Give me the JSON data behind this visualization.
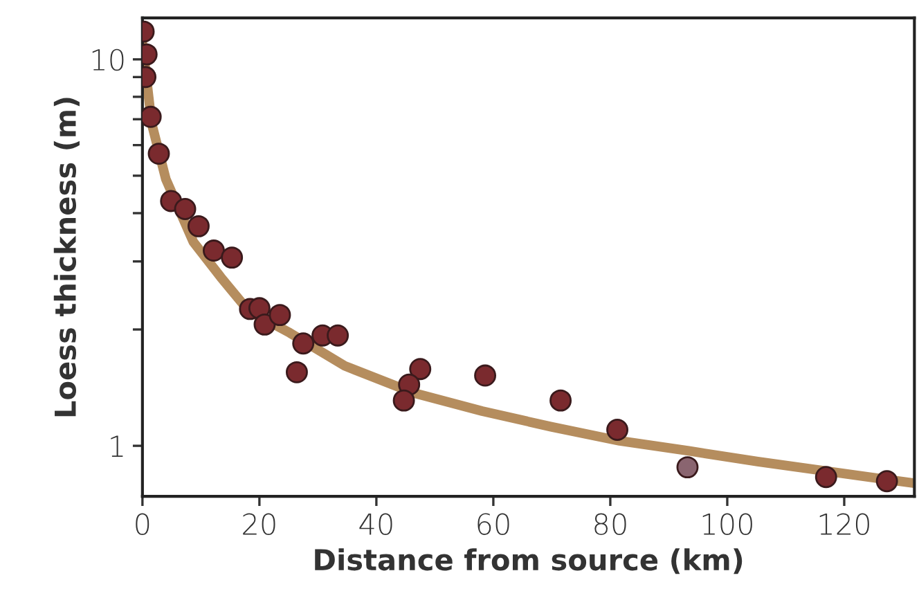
{
  "chart_data": {
    "type": "scatter",
    "xlabel": "Distance from source (km)",
    "ylabel": "Loess thickness (m)",
    "log": "y",
    "xlim": [
      0,
      132
    ],
    "ylim": [
      0.74,
      12.8
    ],
    "xticks": [
      0,
      20,
      40,
      60,
      80,
      100,
      120
    ],
    "yticks": [
      1,
      {
        "value": 2,
        "label": null
      },
      {
        "value": 3,
        "label": null
      },
      {
        "value": 4,
        "label": null
      },
      {
        "value": 5,
        "label": null
      },
      {
        "value": 6,
        "label": null
      },
      {
        "value": 7,
        "label": null
      },
      {
        "value": 8,
        "label": null
      },
      {
        "value": 9,
        "label": null
      },
      10
    ],
    "grid": false,
    "marker": "circle",
    "series": [
      {
        "type": "line",
        "marker": "none",
        "color": "#b58d5e",
        "x": [
          0,
          1.6,
          4,
          8.7,
          13.4,
          18.1,
          25.2,
          34.6,
          46.4,
          58.1,
          69.9,
          81.6,
          93.4,
          105.2,
          116.9,
          132
        ],
        "values": [
          11,
          6.8,
          4.9,
          3.37,
          2.73,
          2.24,
          1.96,
          1.61,
          1.37,
          1.23,
          1.12,
          1.03,
          0.97,
          0.91,
          0.86,
          0.8
        ]
      },
      {
        "x": [
          0.2,
          0.7,
          0.5,
          1.4,
          2.8,
          4.9,
          7.3,
          9.6,
          12.2,
          15.3,
          18.4,
          20,
          20.9,
          23.5,
          27.5,
          26.4,
          30.8,
          33.4,
          47.5,
          45.6,
          44.7,
          58.6,
          71.5,
          81.2,
          93.2,
          116.9,
          127.3
        ],
        "values": [
          11.8,
          10.3,
          9.0,
          7.1,
          5.7,
          4.3,
          4.1,
          3.7,
          3.2,
          3.07,
          2.26,
          2.27,
          2.06,
          2.18,
          1.84,
          1.55,
          1.93,
          1.93,
          1.58,
          1.44,
          1.31,
          1.52,
          1.31,
          1.1,
          0.88,
          0.83,
          0.81
        ],
        "colors": [
          "#7a2a2e",
          "#7a2a2e",
          "#7a2a2e",
          "#7a2a2e",
          "#7a2a2e",
          "#7a2a2e",
          "#7a2a2e",
          "#7a2a2e",
          "#7a2a2e",
          "#7a2a2e",
          "#7a2a2e",
          "#7a2a2e",
          "#7a2a2e",
          "#7a2a2e",
          "#7a2a2e",
          "#7a2a2e",
          "#7a2a2e",
          "#7a2a2e",
          "#7a2a2e",
          "#7a2a2e",
          "#7a2a2e",
          "#7a2a2e",
          "#7a2a2e",
          "#7a2a2e",
          "#8a6570",
          "#7a2a2e",
          "#7a2a2e"
        ]
      }
    ]
  }
}
